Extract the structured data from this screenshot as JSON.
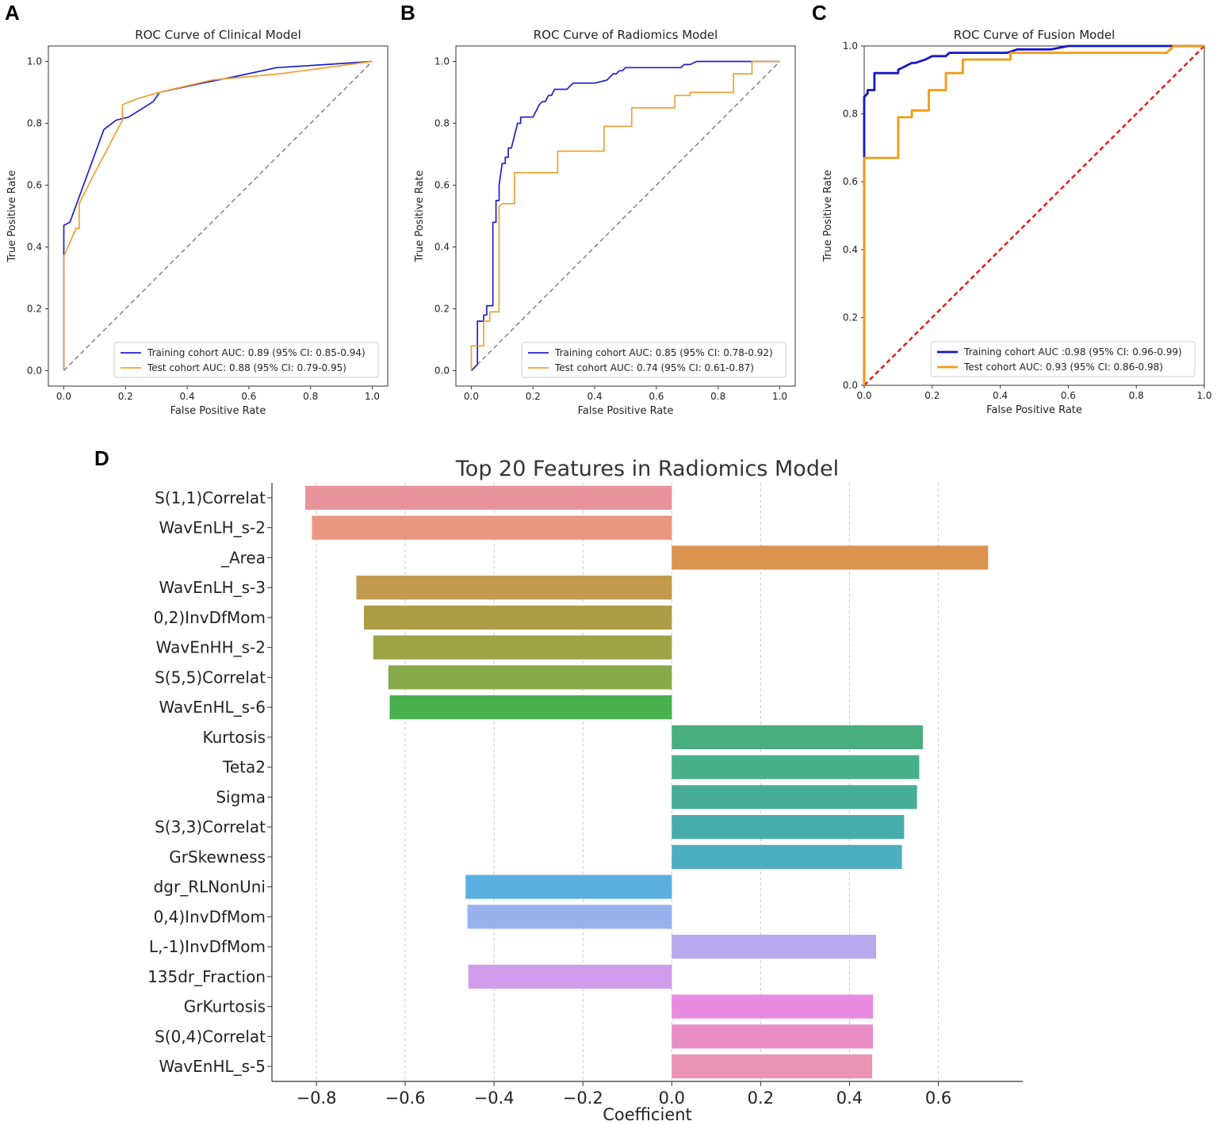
{
  "chart_data": [
    {
      "type": "line",
      "panel": "A",
      "title": "ROC Curve of Clinical Model",
      "xlabel": "False Positive Rate",
      "ylabel": "True Positive Rate",
      "xlim": [
        -0.05,
        1.05
      ],
      "ylim": [
        -0.05,
        1.05
      ],
      "ticks": [
        0.0,
        0.2,
        0.4,
        0.6,
        0.8,
        1.0
      ],
      "tick_labels": [
        "0.0",
        "0.2",
        "0.4",
        "0.6",
        "0.8",
        "1.0"
      ],
      "legend_position": "bottom-right",
      "diagonal": {
        "color": "#888888",
        "style": "dashed"
      },
      "series": [
        {
          "name": "Training cohort AUC: 0.89 (95% CI: 0.85-0.94)",
          "color": "#1f1fd0",
          "x": [
            0,
            0,
            0.02,
            0.13,
            0.17,
            0.21,
            0.29,
            0.31,
            0.45,
            0.55,
            0.69,
            0.85,
            1.0
          ],
          "y": [
            0,
            0.47,
            0.48,
            0.78,
            0.81,
            0.82,
            0.87,
            0.9,
            0.93,
            0.95,
            0.98,
            0.99,
            1.0
          ]
        },
        {
          "name": "Test cohort AUC: 0.88 (95% CI: 0.79-0.95)",
          "color": "#f0a030",
          "x": [
            0,
            0,
            0.04,
            0.05,
            0.05,
            0.09,
            0.19,
            0.19,
            0.24,
            0.31,
            0.48,
            0.7,
            1.0
          ],
          "y": [
            0,
            0.37,
            0.46,
            0.46,
            0.54,
            0.62,
            0.81,
            0.86,
            0.88,
            0.9,
            0.94,
            0.96,
            1.0
          ]
        }
      ]
    },
    {
      "type": "line",
      "panel": "B",
      "title": "ROC Curve of Radiomics Model",
      "xlabel": "False Positive Rate",
      "ylabel": "True Positive Rate",
      "xlim": [
        -0.05,
        1.05
      ],
      "ylim": [
        -0.05,
        1.05
      ],
      "ticks": [
        0.0,
        0.2,
        0.4,
        0.6,
        0.8,
        1.0
      ],
      "tick_labels": [
        "0.0",
        "0.2",
        "0.4",
        "0.6",
        "0.8",
        "1.0"
      ],
      "legend_position": "bottom-right",
      "diagonal": {
        "color": "#888888",
        "style": "dashed"
      },
      "series": [
        {
          "name": "Training cohort AUC: 0.85 (95% CI: 0.78-0.92)",
          "color": "#1f1fd0",
          "x": [
            0,
            0.02,
            0.02,
            0.03,
            0.04,
            0.04,
            0.05,
            0.05,
            0.07,
            0.07,
            0.08,
            0.08,
            0.09,
            0.09,
            0.1,
            0.11,
            0.11,
            0.12,
            0.12,
            0.13,
            0.14,
            0.15,
            0.16,
            0.16,
            0.18,
            0.19,
            0.2,
            0.22,
            0.23,
            0.24,
            0.25,
            0.26,
            0.27,
            0.28,
            0.3,
            0.31,
            0.33,
            0.35,
            0.4,
            0.44,
            0.45,
            0.46,
            0.47,
            0.48,
            0.49,
            0.5,
            0.52,
            0.55,
            0.62,
            0.68,
            0.69,
            0.71,
            0.73,
            0.75,
            0.8,
            0.85,
            0.92,
            1.0
          ],
          "y": [
            0,
            0.02,
            0.16,
            0.16,
            0.16,
            0.18,
            0.18,
            0.21,
            0.21,
            0.48,
            0.48,
            0.55,
            0.55,
            0.6,
            0.67,
            0.67,
            0.69,
            0.69,
            0.72,
            0.72,
            0.76,
            0.8,
            0.8,
            0.82,
            0.82,
            0.82,
            0.82,
            0.86,
            0.87,
            0.87,
            0.89,
            0.89,
            0.91,
            0.91,
            0.91,
            0.91,
            0.93,
            0.93,
            0.93,
            0.94,
            0.95,
            0.96,
            0.96,
            0.97,
            0.97,
            0.98,
            0.98,
            0.98,
            0.98,
            0.98,
            0.99,
            0.99,
            1.0,
            1.0,
            1.0,
            1.0,
            1.0,
            1.0
          ]
        },
        {
          "name": "Test cohort AUC: 0.74 (95% CI: 0.61-0.87)",
          "color": "#f0a030",
          "x": [
            0,
            0,
            0.04,
            0.04,
            0.06,
            0.06,
            0.08,
            0.09,
            0.09,
            0.1,
            0.14,
            0.14,
            0.28,
            0.28,
            0.43,
            0.43,
            0.52,
            0.52,
            0.66,
            0.66,
            0.71,
            0.71,
            0.85,
            0.85,
            0.91,
            0.91,
            1.0
          ],
          "y": [
            0,
            0.08,
            0.08,
            0.16,
            0.16,
            0.19,
            0.19,
            0.19,
            0.53,
            0.54,
            0.54,
            0.64,
            0.64,
            0.71,
            0.71,
            0.79,
            0.79,
            0.85,
            0.85,
            0.89,
            0.89,
            0.9,
            0.9,
            0.96,
            0.96,
            1.0,
            1.0
          ]
        }
      ]
    },
    {
      "type": "line",
      "panel": "C",
      "title": "ROC Curve of Fusion Model",
      "xlabel": "False Positive Rate",
      "ylabel": "True Positive Rate",
      "xlim": [
        0.0,
        1.0
      ],
      "ylim": [
        0.0,
        1.0
      ],
      "ticks": [
        0.0,
        0.2,
        0.4,
        0.6,
        0.8,
        1.0
      ],
      "tick_labels": [
        "0.0",
        "0.2",
        "0.4",
        "0.6",
        "0.8",
        "1.0"
      ],
      "legend_position": "bottom-right",
      "diagonal": {
        "color": "#e02020",
        "style": "dashed"
      },
      "series": [
        {
          "name": "Training cohort AUC :0.98 (95% CI: 0.96-0.99)",
          "color": "#1515c8",
          "x": [
            0,
            0,
            0.01,
            0.01,
            0.03,
            0.03,
            0.05,
            0.1,
            0.1,
            0.12,
            0.14,
            0.15,
            0.18,
            0.2,
            0.24,
            0.25,
            0.3,
            0.42,
            0.45,
            0.5,
            0.55,
            0.6,
            0.7,
            0.8,
            0.9,
            1.0
          ],
          "y": [
            0,
            0.85,
            0.86,
            0.87,
            0.87,
            0.92,
            0.92,
            0.92,
            0.93,
            0.94,
            0.95,
            0.95,
            0.96,
            0.97,
            0.97,
            0.98,
            0.98,
            0.98,
            0.99,
            0.99,
            0.99,
            1.0,
            1.0,
            1.0,
            1.0,
            1.0
          ]
        },
        {
          "name": "Test cohort AUC: 0.93 (95% CI: 0.86-0.98)",
          "color": "#f59a10",
          "x": [
            0,
            0,
            0.1,
            0.1,
            0.14,
            0.14,
            0.19,
            0.19,
            0.24,
            0.24,
            0.29,
            0.29,
            0.43,
            0.43,
            0.89,
            0.91,
            0.93,
            1.0
          ],
          "y": [
            0,
            0.67,
            0.67,
            0.79,
            0.79,
            0.81,
            0.81,
            0.87,
            0.87,
            0.92,
            0.92,
            0.96,
            0.96,
            0.98,
            0.98,
            1.0,
            1.0,
            1.0
          ]
        }
      ]
    },
    {
      "type": "bar",
      "orientation": "horizontal",
      "panel": "D",
      "title": "Top 20 Features in Radiomics Model",
      "xlabel": "Coefficient",
      "ylabel": "",
      "xlim": [
        -0.9,
        0.79
      ],
      "xticks": [
        -0.8,
        -0.6,
        -0.4,
        -0.2,
        0.0,
        0.2,
        0.4,
        0.6
      ],
      "xtick_labels": [
        "−0.8",
        "−0.6",
        "−0.4",
        "−0.2",
        "0.0",
        "0.2",
        "0.4",
        "0.6"
      ],
      "grid": "vertical dashed",
      "categories": [
        "S(1,1)Correlat",
        "WavEnLH_s-2",
        "_Area",
        "WavEnLH_s-3",
        "0,2)InvDfMom",
        "WavEnHH_s-2",
        "S(5,5)Correlat",
        "WavEnHL_s-6",
        "Kurtosis",
        "Teta2",
        "Sigma",
        "S(3,3)Correlat",
        "GrSkewness",
        "dgr_RLNonUni",
        "0,4)InvDfMom",
        "L,-1)InvDfMom",
        "135dr_Fraction",
        "GrKurtosis",
        "S(0,4)Correlat",
        "WavEnHL_s-5"
      ],
      "values": [
        -0.825,
        -0.81,
        0.712,
        -0.71,
        -0.693,
        -0.672,
        -0.638,
        -0.635,
        0.565,
        0.557,
        0.552,
        0.523,
        0.518,
        -0.464,
        -0.46,
        0.46,
        -0.458,
        0.453,
        0.453,
        0.451
      ],
      "colors": [
        "#e9949c",
        "#e89880",
        "#dc9350",
        "#c39a4e",
        "#ac9c44",
        "#9ca544",
        "#86ab48",
        "#48b04c",
        "#48ae7e",
        "#48b08a",
        "#48ad98",
        "#48acac",
        "#4caec0",
        "#5aafe0",
        "#98b0ec",
        "#b8a8ee",
        "#d09ceb",
        "#e88ae0",
        "#ea8ec8",
        "#ec92b4"
      ]
    }
  ]
}
